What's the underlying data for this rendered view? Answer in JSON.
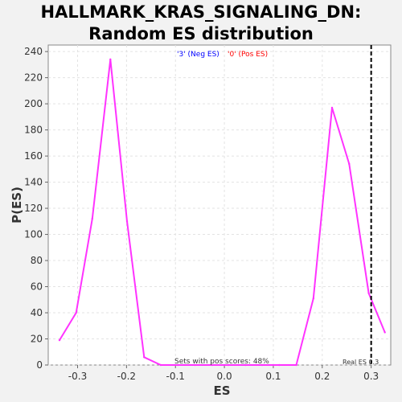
{
  "chart_data": {
    "type": "line",
    "title": "HALLMARK_KRAS_SIGNALING_DN: Random ES distribution",
    "xlabel": "ES",
    "ylabel": "P(ES)",
    "xlim": [
      -0.36,
      0.34
    ],
    "ylim": [
      0,
      245
    ],
    "xticks": [
      "-0.3",
      "-0.2",
      "-0.1",
      "0.0",
      "0.1",
      "0.2",
      "0.3"
    ],
    "xtick_values": [
      -0.3,
      -0.2,
      -0.1,
      0.0,
      0.1,
      0.2,
      0.3
    ],
    "yticks": [
      "0",
      "20",
      "40",
      "60",
      "80",
      "100",
      "120",
      "140",
      "160",
      "180",
      "200",
      "220",
      "240"
    ],
    "ytick_values": [
      0,
      20,
      40,
      60,
      80,
      100,
      120,
      140,
      160,
      180,
      200,
      220,
      240
    ],
    "grid": true,
    "legend": [
      {
        "text": "'3' (Neg ES)",
        "color": "#0000ff"
      },
      {
        "text": "'0' (Pos ES)",
        "color": "#ff0000"
      }
    ],
    "series": [
      {
        "color": "#ff33ff",
        "x": [
          -0.337,
          -0.303,
          -0.27,
          -0.233,
          -0.199,
          -0.164,
          -0.13,
          -0.095,
          -0.06,
          -0.025,
          0.008,
          0.043,
          0.077,
          0.112,
          0.147,
          0.182,
          0.22,
          0.255,
          0.295,
          0.328
        ],
        "y": [
          19,
          40,
          112,
          234,
          110,
          6,
          0,
          0,
          0,
          0,
          0,
          0,
          0,
          0,
          0,
          51,
          197,
          154,
          55,
          25
        ]
      }
    ],
    "real_es": 0.3,
    "annotations": {
      "pos_scores": "Sets with pos scores: 48%",
      "real_es": "Real ES 0.3"
    }
  }
}
